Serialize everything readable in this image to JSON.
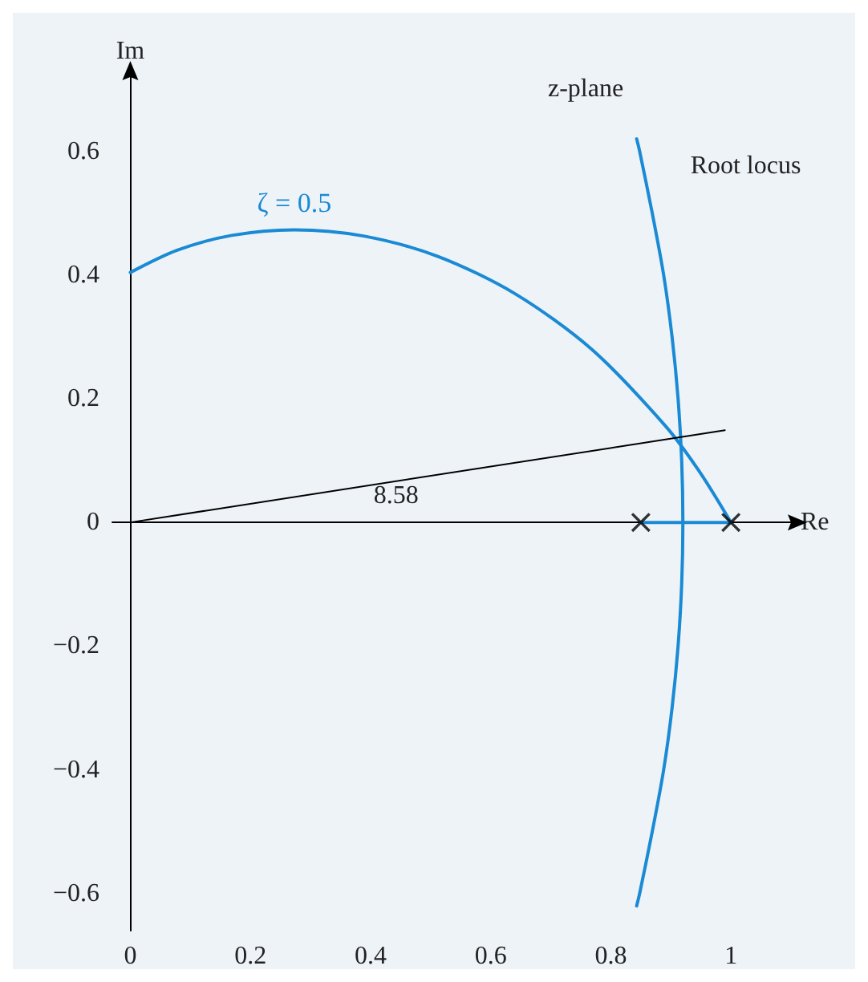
{
  "chart_data": {
    "type": "line",
    "xlabel": "Re",
    "ylabel": "Im",
    "xlim": [
      -0.03,
      1.1
    ],
    "ylim": [
      -0.66,
      0.72
    ],
    "xticks": [
      0,
      0.2,
      0.4,
      0.6,
      0.8,
      1
    ],
    "yticks": [
      {
        "value": -0.6,
        "label": "−0.6"
      },
      {
        "value": -0.4,
        "label": "−0.4"
      },
      {
        "value": -0.2,
        "label": "−0.2"
      },
      0,
      0.2,
      0.4,
      0.6
    ],
    "grid": false,
    "legend": false,
    "series": [
      {
        "name": "ζ = 0.5",
        "color": "#1a8ad4",
        "x": [
          0,
          0.078,
          0.169,
          0.273,
          0.388,
          0.512,
          0.64,
          0.768,
          0.89,
          0.947,
          1
        ],
        "values": [
          0.404,
          0.44,
          0.464,
          0.473,
          0.463,
          0.43,
          0.37,
          0.28,
          0.157,
          0.083,
          0
        ]
      },
      {
        "color": "#1a8ad4",
        "x": [
          0.843,
          0.848,
          0.869,
          0.888,
          0.902,
          0.912,
          0.918,
          0.92,
          0.918,
          0.912,
          0.902,
          0.888,
          0.869,
          0.848,
          0.843
        ],
        "values": [
          0.62,
          0.6,
          0.5,
          0.4,
          0.3,
          0.2,
          0.1,
          0,
          -0.1,
          -0.2,
          -0.3,
          -0.4,
          -0.5,
          -0.6,
          -0.62
        ]
      },
      {
        "color": "#1a8ad4",
        "x": [
          0.85,
          1
        ],
        "values": [
          0,
          0
        ]
      },
      {
        "color": "#000000",
        "x": [
          0,
          0.99
        ],
        "values": [
          0,
          0.149
        ]
      },
      {
        "type": "scatter",
        "marker": "cross",
        "color": "#000000",
        "x": [
          0.85,
          1
        ],
        "values": [
          0,
          0
        ]
      }
    ],
    "annotations": [
      "z-plane",
      "Root locus",
      "8.58"
    ]
  }
}
